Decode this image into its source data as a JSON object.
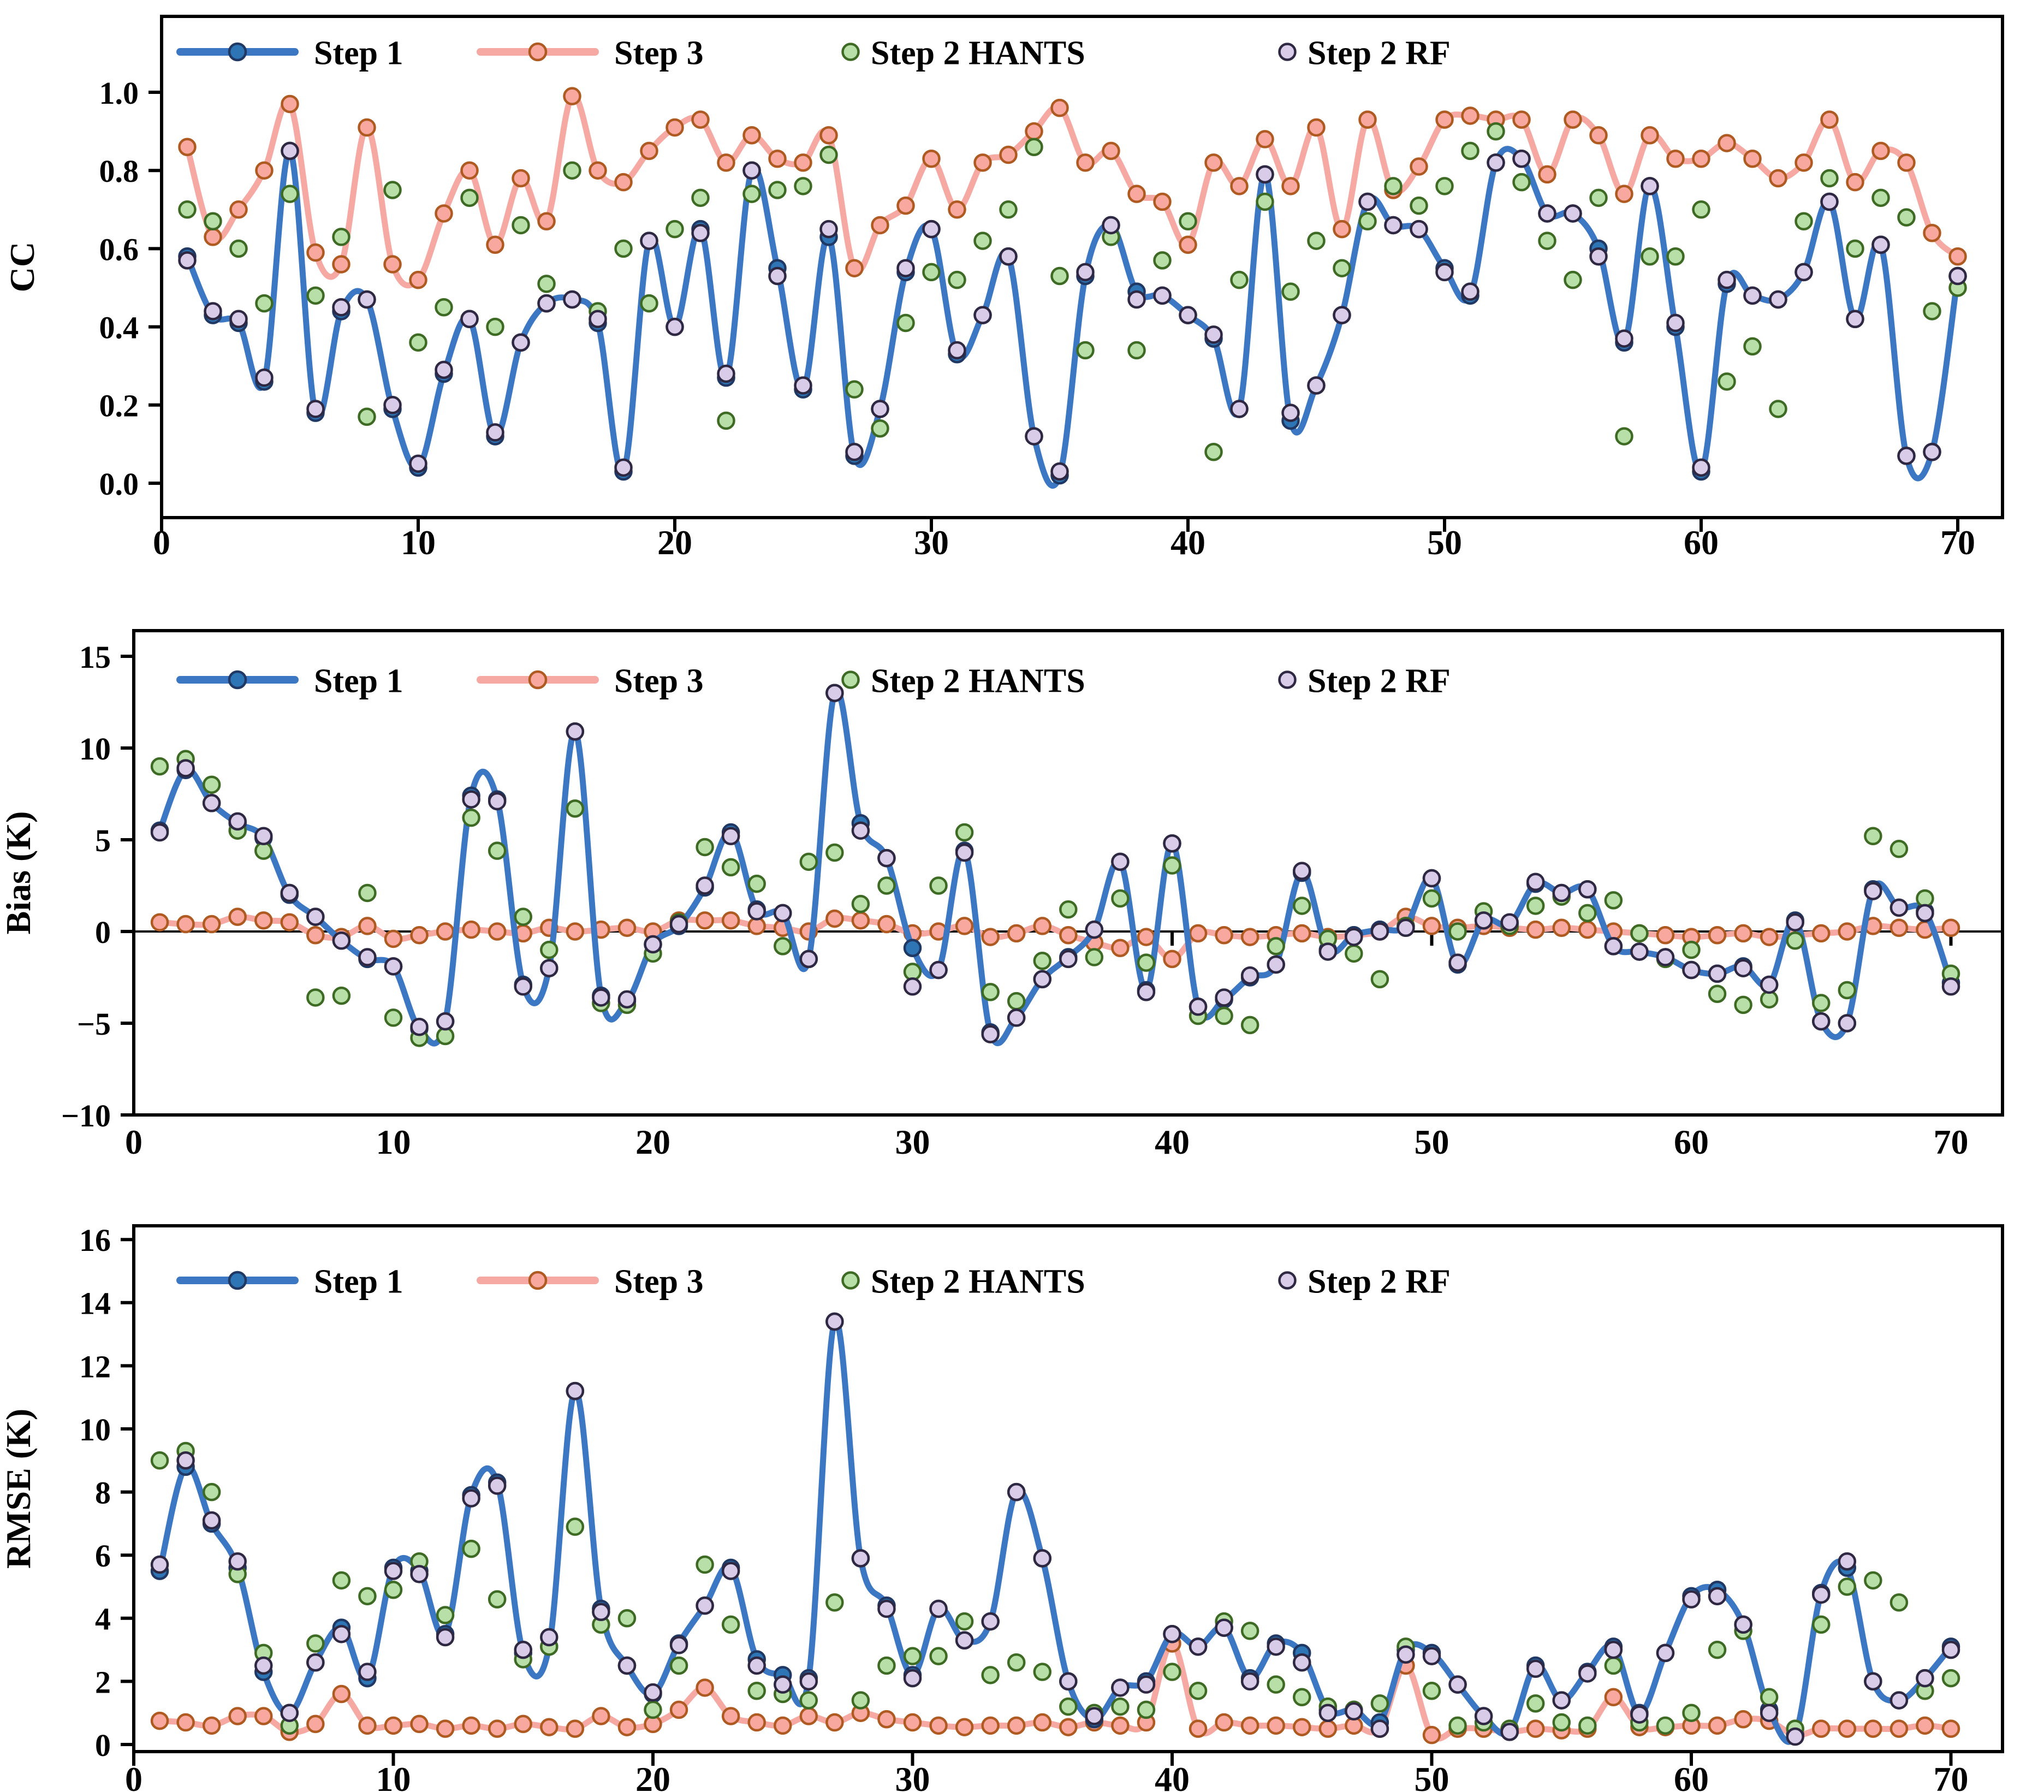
{
  "figure_title": "",
  "legend": {
    "items": [
      {
        "label": "Step 1",
        "type": "line",
        "series": "step1"
      },
      {
        "label": "Step 3",
        "type": "line",
        "series": "step3"
      },
      {
        "label": "Step 2 HANTS",
        "type": "scatter",
        "series": "hants"
      },
      {
        "label": "Step 2 RF",
        "type": "scatter",
        "series": "rf"
      }
    ]
  },
  "colors": {
    "step1_line": "#3B77C2",
    "step1_marker_fill": "#2E75B6",
    "step1_marker_edge": "#1F3864",
    "step3_line": "#F5A9A2",
    "step3_marker_fill": "#F9A8A0",
    "step3_marker_edge": "#AE5A21",
    "hants_fill": "#B8DFA8",
    "hants_edge": "#3E6B24",
    "rf_fill": "#D8CCE8",
    "rf_edge": "#2F2843",
    "axis": "#000000"
  },
  "chart_data": [
    {
      "type": "line+scatter",
      "panel": "CC",
      "ylabel": "CC",
      "xlabel": "",
      "x_start": 1,
      "xlim": [
        0,
        71.7
      ],
      "ylim": [
        -0.088,
        1.194
      ],
      "xticks": [
        0,
        10,
        20,
        30,
        40,
        50,
        60,
        70
      ],
      "yticks": [
        0.0,
        0.2,
        0.4,
        0.6,
        0.8,
        1.0
      ],
      "ytick_decimals": 1,
      "grid": false,
      "legend_position": "top-left-inside",
      "series": [
        {
          "name": "Step 1",
          "key": "step1",
          "type": "line",
          "values": [
            0.58,
            0.43,
            0.41,
            0.26,
            0.85,
            0.18,
            0.44,
            0.47,
            0.19,
            0.04,
            0.28,
            0.42,
            0.12,
            0.36,
            0.46,
            0.47,
            0.41,
            0.03,
            0.62,
            0.4,
            0.65,
            0.27,
            0.8,
            0.55,
            0.24,
            0.63,
            0.07,
            0.19,
            0.54,
            0.65,
            0.33,
            0.43,
            0.58,
            0.12,
            0.02,
            0.53,
            0.66,
            0.49,
            0.48,
            0.43,
            0.37,
            0.19,
            0.79,
            0.16,
            0.25,
            0.43,
            0.72,
            0.66,
            0.65,
            0.55,
            0.48,
            0.82,
            0.83,
            0.69,
            0.69,
            0.6,
            0.36,
            0.76,
            0.4,
            0.03,
            0.51,
            0.48,
            0.47,
            0.54,
            0.72,
            0.42,
            0.61,
            0.07,
            0.08,
            0.53
          ]
        },
        {
          "name": "Step 3",
          "key": "step3",
          "type": "line",
          "values": [
            0.86,
            0.63,
            0.7,
            0.8,
            0.97,
            0.59,
            0.56,
            0.91,
            0.56,
            0.52,
            0.69,
            0.8,
            0.61,
            0.78,
            0.67,
            0.99,
            0.8,
            0.77,
            0.85,
            0.91,
            0.93,
            0.82,
            0.89,
            0.83,
            0.82,
            0.89,
            0.55,
            0.66,
            0.71,
            0.83,
            0.7,
            0.82,
            0.84,
            0.9,
            0.96,
            0.82,
            0.85,
            0.74,
            0.72,
            0.61,
            0.82,
            0.76,
            0.88,
            0.76,
            0.91,
            0.65,
            0.93,
            0.75,
            0.81,
            0.93,
            0.94,
            0.93,
            0.93,
            0.79,
            0.93,
            0.89,
            0.74,
            0.89,
            0.83,
            0.83,
            0.87,
            0.83,
            0.78,
            0.82,
            0.93,
            0.77,
            0.85,
            0.82,
            0.64,
            0.58
          ]
        },
        {
          "name": "Step 2 HANTS",
          "key": "hants",
          "type": "scatter",
          "values": [
            0.7,
            0.67,
            0.6,
            0.46,
            0.74,
            0.48,
            0.63,
            0.17,
            0.75,
            0.36,
            0.45,
            0.73,
            0.4,
            0.66,
            0.51,
            0.8,
            0.44,
            0.6,
            0.46,
            0.65,
            0.73,
            0.16,
            0.74,
            0.75,
            0.76,
            0.84,
            0.24,
            0.14,
            0.41,
            0.54,
            0.52,
            0.62,
            0.7,
            0.86,
            0.53,
            0.34,
            0.63,
            0.34,
            0.57,
            0.67,
            0.08,
            0.52,
            0.72,
            0.49,
            0.62,
            0.55,
            0.67,
            0.76,
            0.71,
            0.76,
            0.85,
            0.9,
            0.77,
            0.62,
            0.52,
            0.73,
            0.12,
            0.58,
            0.58,
            0.7,
            0.26,
            0.35,
            0.19,
            0.67,
            0.78,
            0.6,
            0.73,
            0.68,
            0.44,
            0.5
          ]
        },
        {
          "name": "Step 2 RF",
          "key": "rf",
          "type": "scatter",
          "values": [
            0.57,
            0.44,
            0.42,
            0.27,
            0.85,
            0.19,
            0.45,
            0.47,
            0.2,
            0.05,
            0.29,
            0.42,
            0.13,
            0.36,
            0.46,
            0.47,
            0.42,
            0.04,
            0.62,
            0.4,
            0.64,
            0.28,
            0.8,
            0.53,
            0.25,
            0.65,
            0.08,
            0.19,
            0.55,
            0.65,
            0.34,
            0.43,
            0.58,
            0.12,
            0.03,
            0.54,
            0.66,
            0.47,
            0.48,
            0.43,
            0.38,
            0.19,
            0.79,
            0.18,
            0.25,
            0.43,
            0.72,
            0.66,
            0.65,
            0.54,
            0.49,
            0.82,
            0.83,
            0.69,
            0.69,
            0.58,
            0.37,
            0.76,
            0.41,
            0.04,
            0.52,
            0.48,
            0.47,
            0.54,
            0.72,
            0.42,
            0.61,
            0.07,
            0.08,
            0.53
          ]
        }
      ]
    },
    {
      "type": "line+scatter",
      "panel": "Bias",
      "ylabel": "Bias (K)",
      "xlabel": "",
      "x_start": 1,
      "xlim": [
        0,
        72.0
      ],
      "ylim": [
        -10,
        16.4
      ],
      "xticks": [
        0,
        10,
        20,
        30,
        40,
        50,
        60,
        70
      ],
      "yticks": [
        -10,
        -5,
        0,
        5,
        10,
        15
      ],
      "ytick_decimals": 0,
      "grid": false,
      "zero_line": true,
      "legend_position": "top-left-inside",
      "series": [
        {
          "name": "Step 1",
          "key": "step1",
          "type": "line",
          "values": [
            5.5,
            8.8,
            7.0,
            5.9,
            5.1,
            2.0,
            0.8,
            -0.5,
            -1.5,
            -1.9,
            -5.3,
            -4.9,
            7.4,
            7.2,
            -2.9,
            -2.0,
            10.9,
            -3.5,
            -3.8,
            -0.7,
            0.3,
            2.4,
            5.4,
            1.2,
            1.0,
            -1.5,
            13.0,
            5.9,
            4.0,
            -0.9,
            -2.1,
            4.4,
            -5.5,
            -4.7,
            -2.6,
            -1.4,
            0.1,
            3.8,
            -3.2,
            4.8,
            -4.1,
            -3.7,
            -2.5,
            -1.8,
            3.2,
            -1.0,
            -0.2,
            0.1,
            0.3,
            2.9,
            -1.8,
            0.6,
            0.4,
            2.6,
            2.1,
            2.3,
            -0.8,
            -1.1,
            -1.4,
            -2.1,
            -2.3,
            -1.9,
            -2.9,
            0.6,
            -4.9,
            -5.0,
            2.3,
            1.3,
            1.1,
            -2.8
          ]
        },
        {
          "name": "Step 3",
          "key": "step3",
          "type": "line",
          "values": [
            0.5,
            0.4,
            0.4,
            0.8,
            0.6,
            0.5,
            -0.2,
            -0.3,
            0.3,
            -0.4,
            -0.2,
            0.0,
            0.1,
            0.0,
            -0.1,
            0.2,
            0.0,
            0.1,
            0.2,
            0.0,
            0.6,
            0.6,
            0.6,
            0.3,
            0.2,
            0.0,
            0.7,
            0.6,
            0.4,
            -0.1,
            0.0,
            0.3,
            -0.3,
            -0.1,
            0.3,
            -0.2,
            -0.6,
            -0.9,
            -0.3,
            -1.5,
            -0.1,
            -0.2,
            -0.3,
            -0.2,
            -0.1,
            -0.3,
            -0.2,
            0.0,
            0.8,
            0.3,
            0.2,
            0.3,
            0.2,
            0.1,
            0.2,
            0.1,
            0.0,
            -0.1,
            -0.2,
            -0.3,
            -0.2,
            -0.1,
            -0.3,
            -0.2,
            -0.1,
            0.0,
            0.3,
            0.2,
            0.1,
            0.2
          ]
        },
        {
          "name": "Step 2 HANTS",
          "key": "hants",
          "type": "scatter",
          "values": [
            9.0,
            9.4,
            8.0,
            5.5,
            4.4,
            2.1,
            -3.6,
            -3.5,
            2.1,
            -4.7,
            -5.8,
            -5.7,
            6.2,
            4.4,
            0.8,
            -1.0,
            6.7,
            -3.9,
            -4.0,
            -1.2,
            0.5,
            4.6,
            3.5,
            2.6,
            -0.8,
            3.8,
            4.3,
            1.5,
            2.5,
            -2.2,
            2.5,
            5.4,
            -3.3,
            -3.8,
            -1.6,
            1.2,
            -1.4,
            1.8,
            -1.7,
            3.6,
            -4.6,
            -4.6,
            -5.1,
            -0.8,
            1.4,
            -0.4,
            -1.2,
            -2.6,
            0.3,
            1.8,
            0.0,
            1.1,
            0.3,
            1.4,
            1.9,
            1.0,
            1.7,
            -0.1,
            -1.5,
            -1.0,
            -3.4,
            -4.0,
            -3.7,
            -0.5,
            -3.9,
            -3.2,
            5.2,
            4.5,
            1.8,
            -2.3
          ]
        },
        {
          "name": "Step 2 RF",
          "key": "rf",
          "type": "scatter",
          "values": [
            5.4,
            8.9,
            7.0,
            6.0,
            5.2,
            2.1,
            0.8,
            -0.5,
            -1.4,
            -1.9,
            -5.2,
            -4.9,
            7.2,
            7.1,
            -3.0,
            -2.0,
            10.9,
            -3.6,
            -3.7,
            -0.7,
            0.4,
            2.5,
            5.2,
            1.1,
            1.0,
            -1.5,
            13.0,
            5.5,
            4.0,
            -3.0,
            -2.1,
            4.3,
            -5.6,
            -4.7,
            -2.6,
            -1.5,
            0.1,
            3.8,
            -3.3,
            4.8,
            -4.1,
            -3.6,
            -2.4,
            -1.8,
            3.3,
            -1.1,
            -0.3,
            0.0,
            0.2,
            2.9,
            -1.7,
            0.6,
            0.5,
            2.7,
            2.1,
            2.3,
            -0.8,
            -1.1,
            -1.4,
            -2.1,
            -2.3,
            -2.0,
            -2.9,
            0.5,
            -4.9,
            -5.0,
            2.2,
            1.3,
            1.0,
            -3.0
          ]
        }
      ]
    },
    {
      "type": "line+scatter",
      "panel": "RMSE",
      "ylabel": "RMSE (K)",
      "xlabel": "",
      "x_start": 1,
      "xlim": [
        0,
        72.0
      ],
      "ylim": [
        -0.2,
        16.4
      ],
      "xticks": [
        0,
        10,
        20,
        30,
        40,
        50,
        60,
        70
      ],
      "yticks": [
        0,
        2,
        4,
        6,
        8,
        10,
        12,
        14,
        16
      ],
      "ytick_decimals": 0,
      "grid": false,
      "legend_position": "top-left-inside",
      "series": [
        {
          "name": "Step 1",
          "key": "step1",
          "type": "line",
          "values": [
            5.5,
            8.8,
            7.0,
            5.6,
            2.3,
            1.0,
            2.6,
            3.7,
            2.1,
            5.6,
            5.5,
            3.5,
            7.9,
            8.3,
            2.9,
            3.1,
            11.2,
            4.3,
            2.5,
            1.6,
            3.2,
            4.4,
            5.6,
            2.7,
            2.2,
            2.1,
            13.4,
            5.9,
            4.4,
            2.2,
            4.3,
            3.3,
            3.9,
            8.0,
            5.9,
            2.0,
            0.8,
            1.8,
            2.0,
            3.5,
            3.1,
            3.7,
            2.1,
            3.2,
            2.9,
            1.1,
            1.1,
            0.7,
            3.0,
            2.9,
            1.9,
            0.9,
            0.4,
            2.5,
            1.4,
            2.3,
            3.1,
            1.0,
            2.9,
            4.7,
            4.9,
            3.8,
            1.1,
            0.3,
            4.8,
            5.6,
            2.0,
            1.4,
            2.1,
            3.1
          ]
        },
        {
          "name": "Step 3",
          "key": "step3",
          "type": "line",
          "values": [
            0.75,
            0.7,
            0.6,
            0.9,
            0.9,
            0.4,
            0.65,
            1.6,
            0.6,
            0.6,
            0.65,
            0.5,
            0.6,
            0.5,
            0.65,
            0.55,
            0.5,
            0.9,
            0.55,
            0.65,
            1.1,
            1.8,
            0.9,
            0.7,
            0.6,
            0.9,
            0.7,
            1.0,
            0.8,
            0.7,
            0.6,
            0.55,
            0.6,
            0.6,
            0.7,
            0.55,
            0.7,
            0.6,
            0.7,
            3.2,
            0.5,
            0.7,
            0.6,
            0.6,
            0.55,
            0.5,
            0.6,
            0.5,
            2.5,
            0.3,
            0.5,
            0.5,
            0.4,
            0.5,
            0.45,
            0.5,
            1.5,
            0.55,
            0.55,
            0.6,
            0.6,
            0.8,
            0.75,
            0.3,
            0.5,
            0.5,
            0.5,
            0.5,
            0.6,
            0.5
          ]
        },
        {
          "name": "Step 2 HANTS",
          "key": "hants",
          "type": "scatter",
          "values": [
            9.0,
            9.3,
            8.0,
            5.4,
            2.9,
            0.6,
            3.2,
            5.2,
            4.7,
            4.9,
            5.8,
            4.1,
            6.2,
            4.6,
            2.7,
            3.1,
            6.9,
            3.8,
            4.0,
            1.1,
            2.5,
            5.7,
            3.8,
            1.7,
            1.6,
            1.4,
            4.5,
            1.4,
            2.5,
            2.8,
            2.8,
            3.9,
            2.2,
            2.6,
            2.3,
            1.2,
            1.0,
            1.2,
            1.1,
            2.3,
            1.7,
            3.9,
            3.6,
            1.9,
            1.5,
            1.2,
            1.1,
            1.3,
            3.1,
            1.7,
            0.6,
            0.7,
            0.5,
            1.3,
            0.7,
            0.6,
            2.5,
            0.7,
            0.6,
            1.0,
            3.0,
            3.6,
            1.5,
            0.5,
            3.8,
            5.0,
            5.2,
            4.5,
            1.7,
            2.1
          ]
        },
        {
          "name": "Step 2 RF",
          "key": "rf",
          "type": "scatter",
          "values": [
            5.7,
            9.0,
            7.1,
            5.8,
            2.5,
            1.0,
            2.6,
            3.5,
            2.3,
            5.5,
            5.4,
            3.4,
            7.8,
            8.2,
            3.0,
            3.4,
            11.2,
            4.2,
            2.5,
            1.65,
            3.15,
            4.4,
            5.5,
            2.5,
            1.9,
            2.0,
            13.4,
            5.9,
            4.3,
            2.1,
            4.3,
            3.3,
            3.9,
            8.0,
            5.9,
            2.0,
            0.9,
            1.8,
            1.9,
            3.5,
            3.1,
            3.7,
            2.0,
            3.1,
            2.6,
            1.0,
            1.05,
            0.5,
            2.85,
            2.8,
            1.9,
            0.9,
            0.4,
            2.4,
            1.4,
            2.25,
            3.0,
            0.95,
            2.9,
            4.6,
            4.7,
            3.8,
            1.0,
            0.25,
            4.75,
            5.8,
            2.0,
            1.4,
            2.1,
            3.0
          ]
        }
      ]
    }
  ]
}
